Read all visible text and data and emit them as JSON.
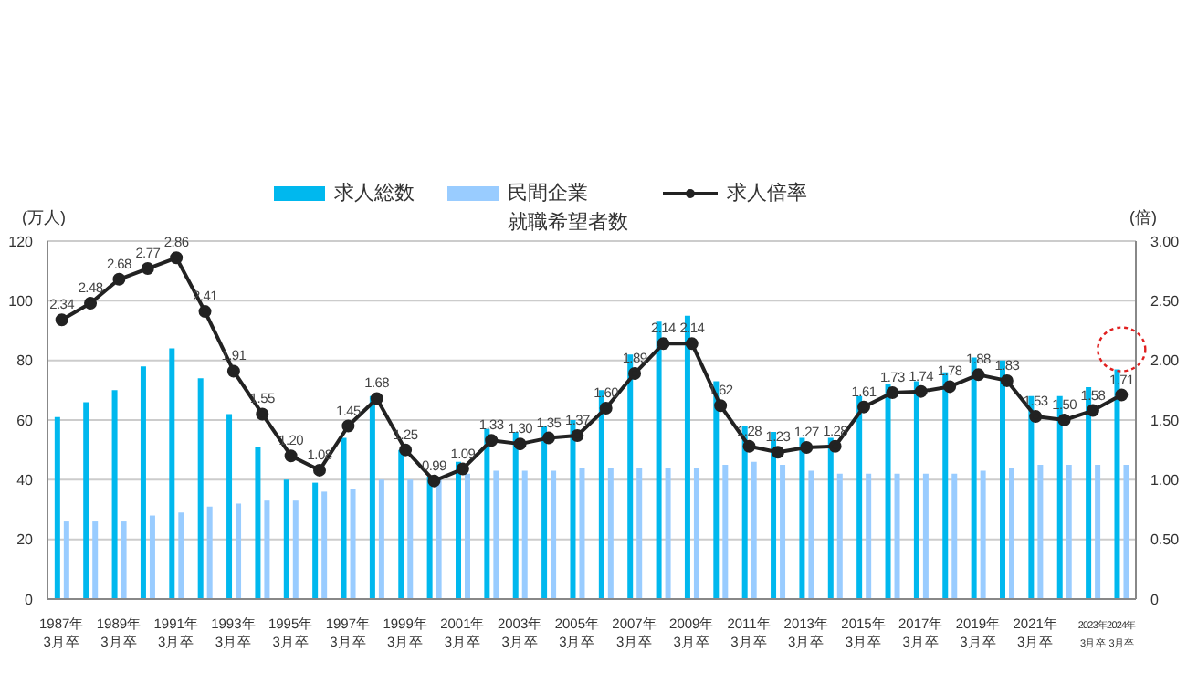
{
  "chart_data": {
    "type": "bar",
    "ylabel": "(万人)",
    "y2label": "(倍)",
    "categories": [
      "1987年\n3月卒",
      null,
      "1989年\n3月卒",
      null,
      "1991年\n3月卒",
      null,
      "1993年\n3月卒",
      null,
      "1995年\n3月卒",
      null,
      "1997年\n3月卒",
      null,
      "1999年\n3月卒",
      null,
      "2001年\n3月卒",
      null,
      "2003年\n3月卒",
      null,
      "2005年\n3月卒",
      null,
      "2007年\n3月卒",
      null,
      "2009年\n3月卒",
      null,
      "2011年\n3月卒",
      null,
      "2013年\n3月卒",
      null,
      "2015年\n3月卒",
      null,
      "2017年\n3月卒",
      null,
      "2019年\n3月卒",
      null,
      "2021年\n3月卒",
      null,
      "2023年\n3月卒",
      "2024年\n3月卒"
    ],
    "series": [
      {
        "name": "求人総数",
        "color": "#00b8ee",
        "values": [
          61,
          66,
          70,
          78,
          84,
          74,
          62,
          51,
          40,
          39,
          54,
          68,
          50,
          41,
          46,
          57,
          56,
          58,
          60,
          70,
          82,
          93,
          95,
          73,
          58,
          56,
          54,
          54,
          68,
          72,
          73,
          76,
          81,
          80,
          68,
          68,
          71,
          77
        ]
      },
      {
        "name": "民間企業就職希望者数",
        "color": "#99ccff",
        "values": [
          26,
          26,
          26,
          28,
          29,
          31,
          32,
          33,
          33,
          36,
          37,
          40,
          40,
          41,
          42,
          43,
          43,
          43,
          44,
          44,
          44,
          44,
          44,
          45,
          46,
          45,
          43,
          42,
          42,
          42,
          42,
          42,
          43,
          44,
          45,
          45,
          45,
          45
        ]
      },
      {
        "name": "求人倍率",
        "type": "line",
        "axis": "y2",
        "color": "#222222",
        "values": [
          2.34,
          2.48,
          2.68,
          2.77,
          2.86,
          2.41,
          1.91,
          1.55,
          1.2,
          1.08,
          1.45,
          1.68,
          1.25,
          0.99,
          1.09,
          1.33,
          1.3,
          1.35,
          1.37,
          1.6,
          1.89,
          2.14,
          2.14,
          1.62,
          1.28,
          1.23,
          1.27,
          1.28,
          1.61,
          1.73,
          1.74,
          1.78,
          1.88,
          1.83,
          1.53,
          1.5,
          1.58,
          1.71
        ],
        "value_labels": [
          "2.34",
          "2.48",
          "2.68",
          "2.77",
          "2.86",
          "2.41",
          "1.91",
          "1.55",
          "1.20",
          "1.08",
          "1.45",
          "1.68",
          "1.25",
          "0.99",
          "1.09",
          "1.33",
          "1.30",
          "1.35",
          "1.37",
          "1.60",
          "1.89",
          "2.14",
          "2.14",
          "1.62",
          "1.28",
          "1.23",
          "1.27",
          "1.28",
          "1.61",
          "1.73",
          "1.74",
          "1.78",
          "1.88",
          "1.83",
          "1.53",
          "1.50",
          "1.58",
          "1.71"
        ]
      }
    ],
    "ylim": [
      0,
      120
    ],
    "yticks": [
      0,
      20,
      40,
      60,
      80,
      100,
      120
    ],
    "y2lim": [
      0,
      3
    ],
    "y2ticks": [
      0,
      {
        "value": 0.5,
        "label": "0.50"
      },
      {
        "value": 1,
        "label": "1.00"
      },
      {
        "value": 1.5,
        "label": "1.50"
      },
      {
        "value": 2,
        "label": "2.00"
      },
      {
        "value": 2.5,
        "label": "2.50"
      },
      {
        "value": 3,
        "label": "3.00"
      }
    ],
    "grid": "y",
    "legend": "top",
    "marker": "circle",
    "line_style": "solid"
  }
}
